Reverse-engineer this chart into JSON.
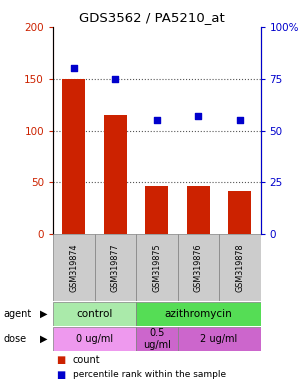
{
  "title": "GDS3562 / PA5210_at",
  "samples": [
    "GSM319874",
    "GSM319877",
    "GSM319875",
    "GSM319876",
    "GSM319878"
  ],
  "counts": [
    150,
    115,
    47,
    47,
    42
  ],
  "percentiles": [
    80,
    75,
    55,
    57,
    55
  ],
  "left_ylim": [
    0,
    200
  ],
  "right_ylim": [
    0,
    100
  ],
  "left_yticks": [
    0,
    50,
    100,
    150,
    200
  ],
  "left_yticklabels": [
    "0",
    "50",
    "100",
    "150",
    "200"
  ],
  "right_yticks": [
    0,
    25,
    50,
    75,
    100
  ],
  "right_yticklabels": [
    "0",
    "25",
    "50",
    "75",
    "100%"
  ],
  "bar_color": "#cc2200",
  "dot_color": "#0000cc",
  "bar_width": 0.55,
  "agent_labels": [
    {
      "text": "control",
      "colspan": [
        0,
        2
      ],
      "color": "#aaeaaa"
    },
    {
      "text": "azithromycin",
      "colspan": [
        2,
        5
      ],
      "color": "#55dd55"
    }
  ],
  "dose_labels": [
    {
      "text": "0 ug/ml",
      "colspan": [
        0,
        2
      ],
      "color": "#ee99ee"
    },
    {
      "text": "0.5\nug/ml",
      "colspan": [
        2,
        3
      ],
      "color": "#cc66cc"
    },
    {
      "text": "2 ug/ml",
      "colspan": [
        3,
        5
      ],
      "color": "#cc66cc"
    }
  ],
  "legend_count_color": "#cc2200",
  "legend_pct_color": "#0000cc",
  "sample_area_color": "#cccccc",
  "grid_color": "#555555",
  "bg_color": "#ffffff"
}
